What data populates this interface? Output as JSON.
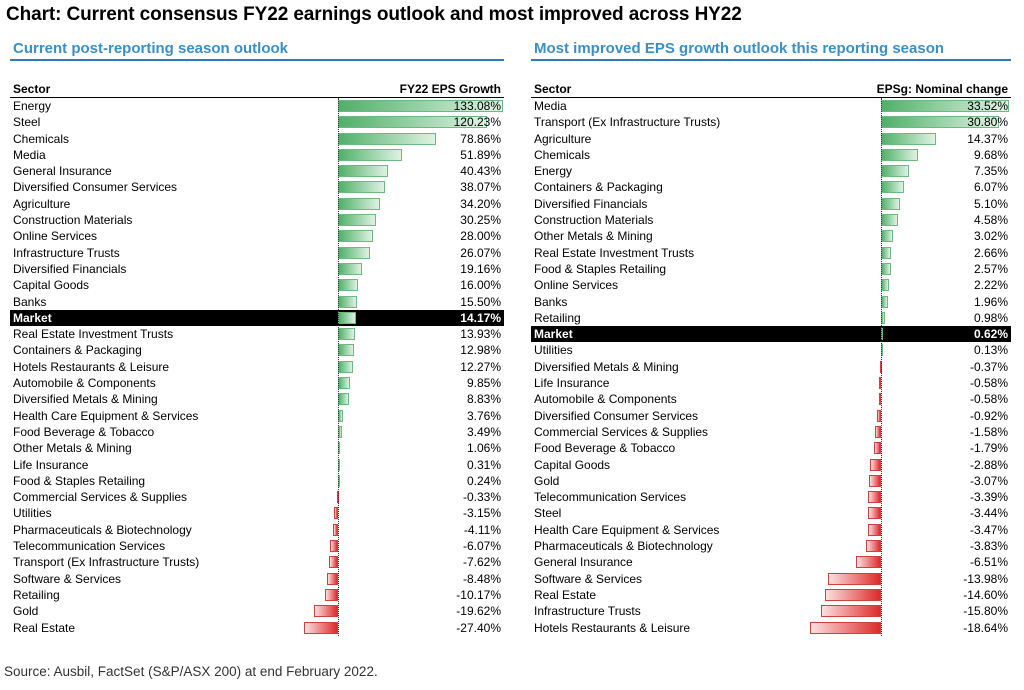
{
  "title": "Chart: Current consensus FY22 earnings outlook and most improved across HY22",
  "source": "Source: Ausbil, FactSet (S&P/ASX 200) at end February 2022.",
  "chart_data": [
    {
      "type": "bar",
      "orientation": "horizontal",
      "title": "Current post-reporting season outlook",
      "category_header": "Sector",
      "value_header": "FY22 EPS Growth",
      "unit": "%",
      "highlight": "Market",
      "categories": [
        "Energy",
        "Steel",
        "Chemicals",
        "Media",
        "General Insurance",
        "Diversified Consumer Services",
        "Agriculture",
        "Construction Materials",
        "Online Services",
        "Infrastructure Trusts",
        "Diversified Financials",
        "Capital Goods",
        "Banks",
        "Market",
        "Real Estate Investment Trusts",
        "Containers & Packaging",
        "Hotels Restaurants & Leisure",
        "Automobile & Components",
        "Diversified Metals & Mining",
        "Health Care Equipment & Services",
        "Food Beverage & Tobacco",
        "Other Metals & Mining",
        "Life Insurance",
        "Food & Staples Retailing",
        "Commercial Services & Supplies",
        "Utilities",
        "Pharmaceuticals & Biotechnology",
        "Telecommunication Services",
        "Transport (Ex Infrastructure Trusts)",
        "Software & Services",
        "Retailing",
        "Gold",
        "Real Estate"
      ],
      "values": [
        133.08,
        120.23,
        78.86,
        51.89,
        40.43,
        38.07,
        34.2,
        30.25,
        28.0,
        26.07,
        19.16,
        16.0,
        15.5,
        14.17,
        13.93,
        12.98,
        12.27,
        9.85,
        8.83,
        3.76,
        3.49,
        1.06,
        0.31,
        0.24,
        -0.33,
        -3.15,
        -4.11,
        -6.07,
        -7.62,
        -8.48,
        -10.17,
        -19.62,
        -27.4
      ],
      "labels": [
        "133.08%",
        "120.23%",
        "78.86%",
        "51.89%",
        "40.43%",
        "38.07%",
        "34.20%",
        "30.25%",
        "28.00%",
        "26.07%",
        "19.16%",
        "16.00%",
        "15.50%",
        "14.17%",
        "13.93%",
        "12.98%",
        "12.27%",
        "9.85%",
        "8.83%",
        "3.76%",
        "3.49%",
        "1.06%",
        "0.31%",
        "0.24%",
        "-0.33%",
        "-3.15%",
        "-4.11%",
        "-6.07%",
        "-7.62%",
        "-8.48%",
        "-10.17%",
        "-19.62%",
        "-27.40%"
      ],
      "colors": {
        "positive": "#4fb069",
        "negative": "#dd2a2a"
      }
    },
    {
      "type": "bar",
      "orientation": "horizontal",
      "title": "Most improved EPS growth outlook this reporting season",
      "category_header": "Sector",
      "value_header": "EPSg: Nominal change",
      "unit": "%",
      "highlight": "Market",
      "categories": [
        "Media",
        "Transport (Ex Infrastructure Trusts)",
        "Agriculture",
        "Chemicals",
        "Energy",
        "Containers & Packaging",
        "Diversified Financials",
        "Construction Materials",
        "Other Metals & Mining",
        "Real Estate Investment Trusts",
        "Food & Staples Retailing",
        "Online Services",
        "Banks",
        "Retailing",
        "Market",
        "Utilities",
        "Diversified Metals & Mining",
        "Life Insurance",
        "Automobile & Components",
        "Diversified Consumer Services",
        "Commercial Services & Supplies",
        "Food Beverage & Tobacco",
        "Capital Goods",
        "Gold",
        "Telecommunication Services",
        "Steel",
        "Health Care Equipment & Services",
        "Pharmaceuticals & Biotechnology",
        "General Insurance",
        "Software & Services",
        "Real Estate",
        "Infrastructure Trusts",
        "Hotels Restaurants & Leisure"
      ],
      "values": [
        33.52,
        30.8,
        14.37,
        9.68,
        7.35,
        6.07,
        5.1,
        4.58,
        3.02,
        2.66,
        2.57,
        2.22,
        1.96,
        0.98,
        0.62,
        0.13,
        -0.37,
        -0.58,
        -0.58,
        -0.92,
        -1.58,
        -1.79,
        -2.88,
        -3.07,
        -3.39,
        -3.44,
        -3.47,
        -3.83,
        -6.51,
        -13.98,
        -14.6,
        -15.8,
        -18.64
      ],
      "labels": [
        "33.52%",
        "30.80%",
        "14.37%",
        "9.68%",
        "7.35%",
        "6.07%",
        "5.10%",
        "4.58%",
        "3.02%",
        "2.66%",
        "2.57%",
        "2.22%",
        "1.96%",
        "0.98%",
        "0.62%",
        "0.13%",
        "-0.37%",
        "-0.58%",
        "-0.58%",
        "-0.92%",
        "-1.58%",
        "-1.79%",
        "-2.88%",
        "-3.07%",
        "-3.39%",
        "-3.44%",
        "-3.47%",
        "-3.83%",
        "-6.51%",
        "-13.98%",
        "-14.60%",
        "-15.80%",
        "-18.64%"
      ],
      "colors": {
        "positive": "#4fb069",
        "negative": "#dd2a2a"
      }
    }
  ]
}
